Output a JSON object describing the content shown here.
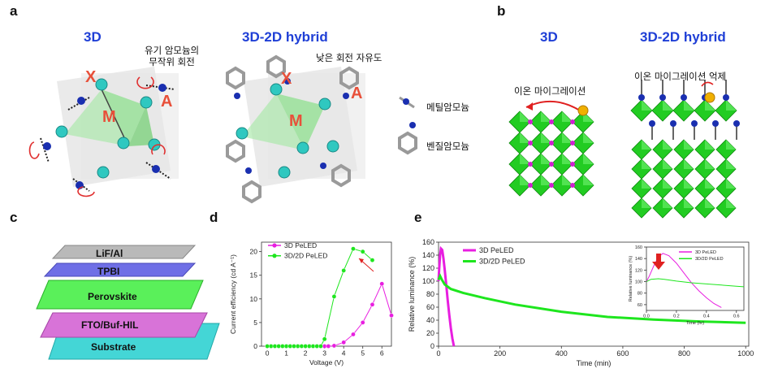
{
  "panels": [
    "a",
    "b",
    "c",
    "d",
    "e"
  ],
  "panel_a": {
    "title_left": "3D",
    "title_right": "3D-2D hybrid",
    "note_random_rotation": [
      "유기 암모늄의",
      "무작위 회전"
    ],
    "note_low_freedom": "낮은 회전 자유도",
    "site_x": "X",
    "site_m": "M",
    "site_a": "A",
    "legend_methyl": "메틸암모늄",
    "legend_benzyl": "벤질암모늄"
  },
  "panel_b": {
    "title_left": "3D",
    "title_right": "3D-2D hybrid",
    "note_migration": "이온 마이그레이션",
    "note_suppression": "이온 마이그레이션 억제"
  },
  "panel_c": {
    "layers": [
      "LiF/Al",
      "TPBI",
      "Perovskite",
      "FTO/Buf-HIL",
      "Substrate"
    ]
  },
  "colors": {
    "title_blue": "#1f3fd6",
    "site_red": "#e8503a",
    "magenta": "#e81ee0",
    "green": "#1ee61e",
    "octahedron_green": "#22cc22"
  },
  "chart_d": {
    "type": "line",
    "ylabel": "Current efficiency (cd A⁻¹)",
    "xlabel": "Voltage (V)",
    "xlim": [
      -0.3,
      6.5
    ],
    "ylim": [
      0,
      22
    ],
    "xticks": [
      "0",
      "1",
      "2",
      "3",
      "4",
      "5",
      "6"
    ],
    "yticks": [
      "0",
      "5",
      "10",
      "15",
      "20"
    ],
    "legend": [
      "3D PeLED",
      "3D/2D PeLED"
    ],
    "series": [
      {
        "name": "3D PeLED",
        "color": "#e81ee0",
        "x": [
          0,
          0.2,
          0.4,
          0.6,
          0.8,
          1.0,
          1.2,
          1.4,
          1.6,
          1.8,
          2.0,
          2.2,
          2.4,
          2.6,
          2.8,
          3.0,
          3.2,
          3.5,
          4.0,
          4.5,
          5.0,
          5.5,
          6.0,
          6.5
        ],
        "y": [
          0,
          0,
          0,
          0,
          0,
          0,
          0,
          0,
          0,
          0,
          0,
          0,
          0,
          0,
          0,
          0,
          0,
          0.1,
          0.8,
          2.5,
          5.0,
          8.8,
          13.2,
          6.5
        ]
      },
      {
        "name": "3D/2D PeLED",
        "color": "#1ee61e",
        "x": [
          0,
          0.2,
          0.4,
          0.6,
          0.8,
          1.0,
          1.2,
          1.4,
          1.6,
          1.8,
          2.0,
          2.2,
          2.4,
          2.6,
          2.8,
          3.0,
          3.5,
          4.0,
          4.5,
          5.0,
          5.5,
          6.0
        ],
        "y": [
          0,
          0,
          0,
          0,
          0,
          0,
          0,
          0,
          0,
          0,
          0,
          0,
          0,
          0,
          0,
          1.5,
          10.5,
          16.0,
          20.6,
          20.0,
          18.2,
          null
        ]
      }
    ]
  },
  "chart_e": {
    "type": "line",
    "ylabel": "Relative luminance (%)",
    "xlabel": "Time (min)",
    "xlim": [
      0,
      1010
    ],
    "ylim": [
      0,
      160
    ],
    "xticks": [
      "0",
      "200",
      "400",
      "600",
      "800",
      "1000"
    ],
    "yticks": [
      "0",
      "20",
      "40",
      "60",
      "80",
      "100",
      "120",
      "140",
      "160"
    ],
    "legend": [
      "3D PeLED",
      "3D/2D PeLED"
    ],
    "series": [
      {
        "name": "3D PeLED",
        "color": "#e81ee0",
        "x": [
          0,
          2,
          5,
          8,
          12,
          16,
          20,
          25,
          30,
          35,
          40,
          45,
          50
        ],
        "y": [
          100,
          118,
          140,
          150,
          148,
          135,
          118,
          95,
          70,
          48,
          28,
          12,
          0
        ]
      },
      {
        "name": "3D/2D PeLED",
        "color": "#1ee61e",
        "x": [
          0,
          5,
          10,
          20,
          40,
          80,
          150,
          250,
          400,
          550,
          700,
          850,
          1000
        ],
        "y": [
          102,
          108,
          103,
          95,
          88,
          82,
          74,
          64,
          53,
          45,
          41,
          38,
          36
        ]
      }
    ],
    "inset": {
      "ylabel": "Relative luminance (%)",
      "xlabel": "Time (hr)",
      "xlim": [
        0,
        0.65
      ],
      "ylim": [
        50,
        160
      ],
      "xticks": [
        "0.0",
        "0.2",
        "0.4",
        "0.6"
      ],
      "yticks": [
        "60",
        "80",
        "100",
        "120",
        "140",
        "160"
      ],
      "legend": [
        "3D PeLED",
        "3D/2D PeLED"
      ],
      "series": [
        {
          "name": "3D PeLED",
          "color": "#e81ee0",
          "x": [
            0,
            0.02,
            0.05,
            0.08,
            0.11,
            0.15,
            0.2,
            0.25,
            0.3,
            0.35,
            0.4,
            0.45,
            0.5
          ],
          "y": [
            100,
            110,
            128,
            143,
            149,
            145,
            132,
            115,
            98,
            84,
            72,
            62,
            55
          ]
        },
        {
          "name": "3D/2D PeLED",
          "color": "#1ee61e",
          "x": [
            0,
            0.03,
            0.08,
            0.12,
            0.2,
            0.3,
            0.4,
            0.5,
            0.6,
            0.65
          ],
          "y": [
            100,
            104,
            105,
            104,
            101,
            98,
            96,
            94,
            92,
            91
          ]
        }
      ]
    }
  }
}
